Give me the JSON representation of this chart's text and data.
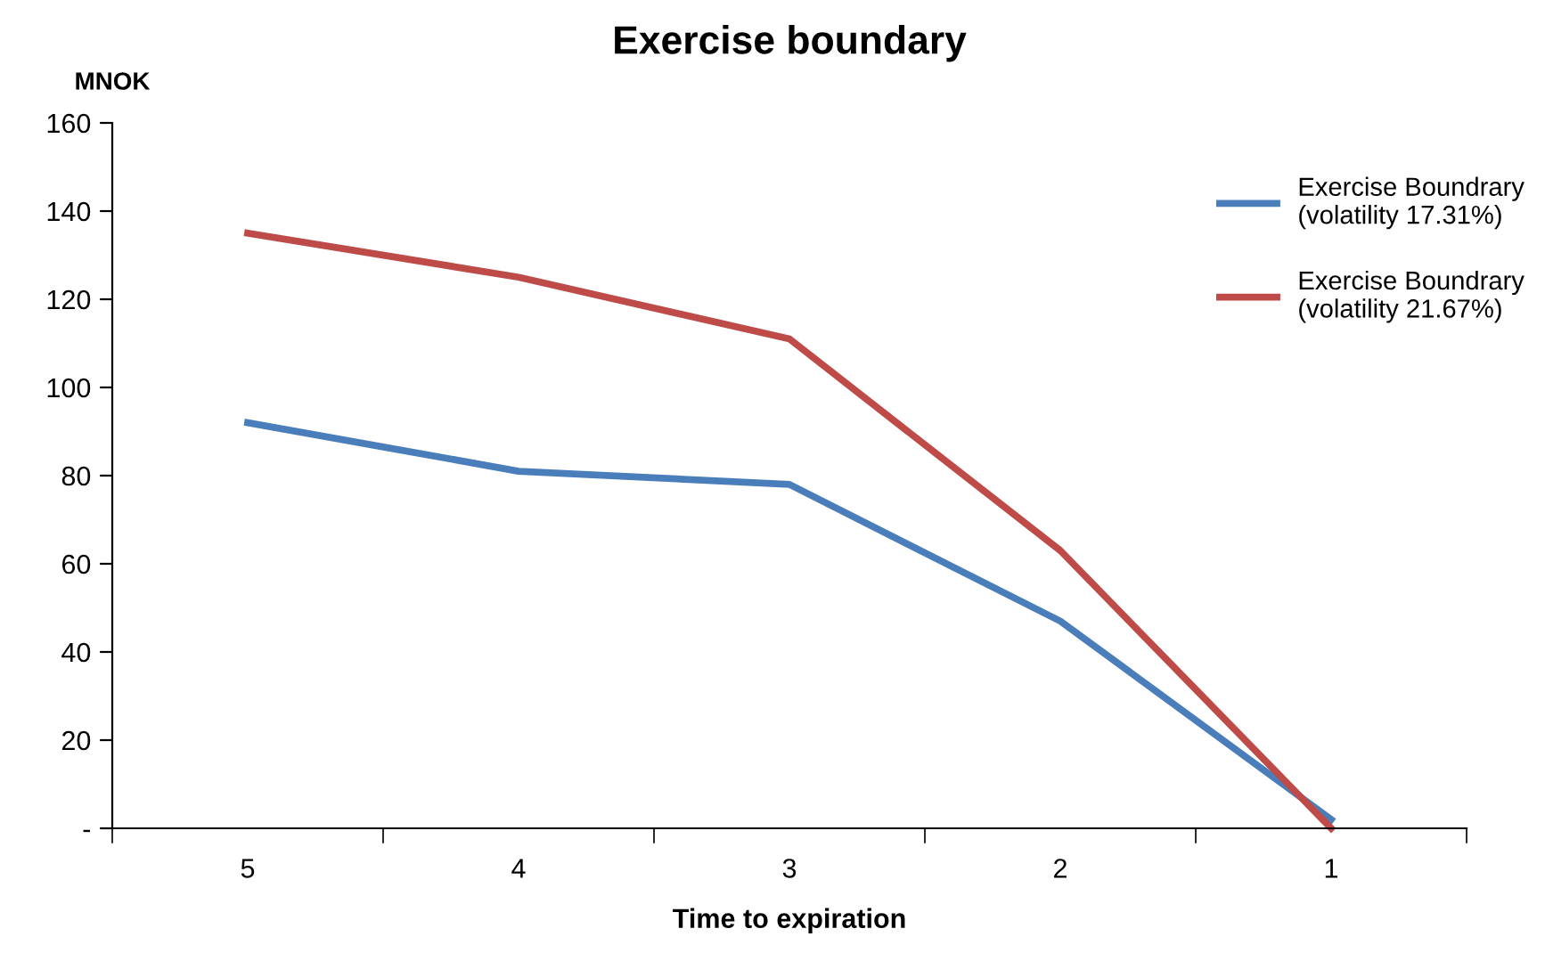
{
  "chart_data": {
    "type": "line",
    "title": "Exercise boundary",
    "xlabel": "Time to expiration",
    "ylabel": "MNOK",
    "categories": [
      "5",
      "4",
      "3",
      "2",
      "1"
    ],
    "series": [
      {
        "name": "Exercise Boundrary\n(volatility 17.31%)",
        "color": "#4a7ebb",
        "values": [
          92,
          81,
          78,
          47,
          2
        ]
      },
      {
        "name": "Exercise Boundrary\n(volatility 21.67%)",
        "color": "#be4b48",
        "values": [
          135,
          125,
          111,
          63,
          0
        ]
      }
    ],
    "ylim": [
      0,
      160
    ],
    "yticks": [
      {
        "value": 0,
        "label": "-"
      },
      20,
      40,
      60,
      80,
      100,
      120,
      140,
      160
    ],
    "grid": false,
    "legend": "right",
    "marker": "none",
    "line_style": "solid"
  }
}
